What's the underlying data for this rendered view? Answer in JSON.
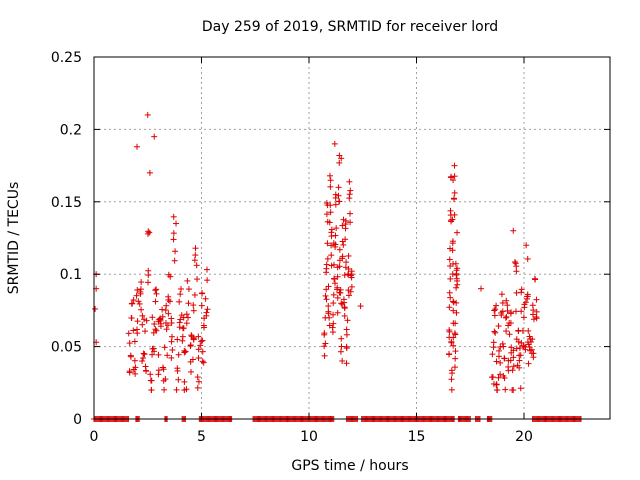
{
  "chart_data": {
    "type": "scatter",
    "title": "Day 259 of 2019, SRMTID for receiver lord",
    "xlabel": "GPS time / hours",
    "ylabel": "SRMTID / TECUs",
    "xlim": [
      0,
      24
    ],
    "ylim": [
      0,
      0.25
    ],
    "xticks": [
      0,
      5,
      10,
      15,
      20
    ],
    "yticks": [
      0,
      0.05,
      0.1,
      0.15,
      0.2,
      0.25
    ],
    "xtick_labels": [
      "0",
      "5",
      "10",
      "15",
      "20"
    ],
    "ytick_labels": [
      "0",
      "0.05",
      "0.1",
      "0.15",
      "0.2",
      "0.25"
    ],
    "grid": true,
    "marker": "+",
    "color": "#dd0000",
    "zero_segments": [
      [
        0.0,
        1.65
      ],
      [
        1.95,
        2.1
      ],
      [
        3.3,
        3.4
      ],
      [
        4.1,
        4.25
      ],
      [
        4.9,
        6.4
      ],
      [
        7.4,
        11.2
      ],
      [
        11.75,
        12.3
      ],
      [
        12.45,
        16.8
      ],
      [
        16.95,
        17.55
      ],
      [
        17.75,
        18.0
      ],
      [
        18.3,
        18.55
      ],
      [
        20.4,
        22.7
      ]
    ],
    "clusters": [
      {
        "x0": 1.6,
        "x1": 5.3,
        "values": [
          0.05,
          0.08,
          0.04,
          0.07,
          0.09,
          0.06,
          0.05,
          0.11,
          0.03,
          0.06,
          0.08,
          0.05,
          0.07,
          0.04,
          0.06,
          0.09,
          0.05,
          0.12,
          0.04,
          0.07,
          0.06,
          0.03,
          0.08,
          0.05,
          0.06,
          0.1,
          0.04,
          0.07,
          0.05,
          0.09
        ]
      },
      {
        "x0": 10.7,
        "x1": 12.0,
        "values": [
          0.06,
          0.1,
          0.13,
          0.08,
          0.15,
          0.12,
          0.07,
          0.11,
          0.14,
          0.09,
          0.17,
          0.1,
          0.06,
          0.13,
          0.08,
          0.12,
          0.05,
          0.1,
          0.15,
          0.09
        ]
      },
      {
        "x0": 16.5,
        "x1": 16.9,
        "values": [
          0.06,
          0.1,
          0.15,
          0.04,
          0.12,
          0.07,
          0.16,
          0.05,
          0.09,
          0.11
        ]
      },
      {
        "x0": 18.5,
        "x1": 20.6,
        "values": [
          0.04,
          0.06,
          0.03,
          0.05,
          0.07,
          0.04,
          0.08,
          0.05,
          0.06,
          0.03,
          0.09,
          0.05,
          0.04,
          0.07,
          0.06,
          0.1,
          0.05,
          0.04,
          0.06,
          0.08
        ]
      }
    ],
    "highlights": [
      {
        "x": 2.5,
        "y": 0.21
      },
      {
        "x": 2.8,
        "y": 0.195
      },
      {
        "x": 2.0,
        "y": 0.188
      },
      {
        "x": 2.6,
        "y": 0.17
      },
      {
        "x": 11.2,
        "y": 0.19
      },
      {
        "x": 11.5,
        "y": 0.18
      },
      {
        "x": 16.7,
        "y": 0.165
      },
      {
        "x": 0.1,
        "y": 0.1
      },
      {
        "x": 0.1,
        "y": 0.09
      },
      {
        "x": 0.05,
        "y": 0.076
      },
      {
        "x": 0.1,
        "y": 0.053
      },
      {
        "x": 19.5,
        "y": 0.13
      },
      {
        "x": 20.1,
        "y": 0.12
      },
      {
        "x": 18.0,
        "y": 0.09
      },
      {
        "x": 12.4,
        "y": 0.078
      }
    ]
  }
}
